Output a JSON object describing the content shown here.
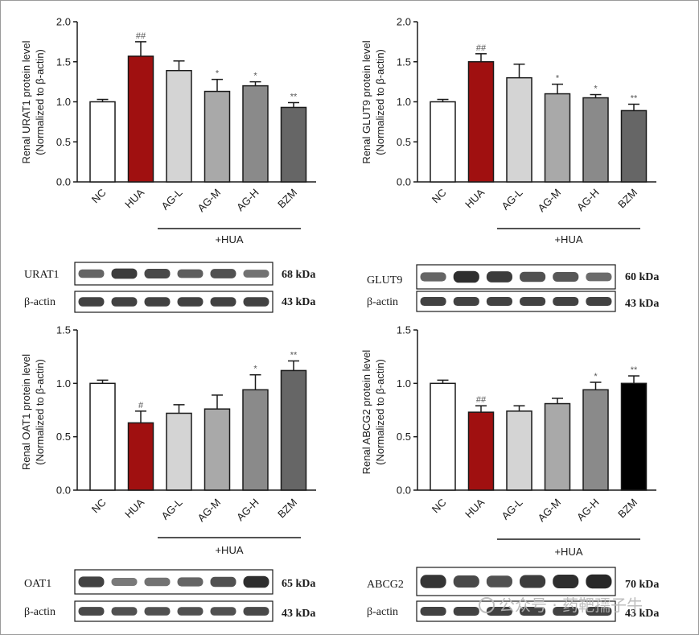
{
  "chart_data": [
    {
      "type": "bar",
      "categories": [
        "NC",
        "HUA",
        "AG-L",
        "AG-M",
        "AG-H",
        "BZM"
      ],
      "values": [
        1.0,
        1.57,
        1.39,
        1.13,
        1.2,
        0.93
      ],
      "errors": [
        0.03,
        0.18,
        0.12,
        0.15,
        0.05,
        0.06
      ],
      "significance": [
        "",
        "##",
        "",
        "*",
        "*",
        "**"
      ],
      "colors": [
        "#ffffff",
        "#a01010",
        "#d4d4d4",
        "#a9a9a9",
        "#8a8a8a",
        "#666666"
      ],
      "ylabel_line1": "Renal URAT1 protein level",
      "ylabel_line2": "(Normalized to β-actin)",
      "ylim": [
        0,
        2.0
      ],
      "yticks": [
        "0.0",
        "0.5",
        "1.0",
        "1.5",
        "2.0"
      ],
      "group_label": "+HUA",
      "blot": {
        "protein": "URAT1",
        "protein_kda": "68 kDa",
        "control": "β-actin",
        "control_kda": "43 kDa"
      }
    },
    {
      "type": "bar",
      "categories": [
        "NC",
        "HUA",
        "AG-L",
        "AG-M",
        "AG-H",
        "BZM"
      ],
      "values": [
        1.0,
        1.5,
        1.3,
        1.1,
        1.05,
        0.89
      ],
      "errors": [
        0.03,
        0.1,
        0.17,
        0.12,
        0.04,
        0.08
      ],
      "significance": [
        "",
        "##",
        "",
        "*",
        "*",
        "**"
      ],
      "colors": [
        "#ffffff",
        "#a01010",
        "#d4d4d4",
        "#a9a9a9",
        "#8a8a8a",
        "#666666"
      ],
      "ylabel_line1": "Renal GLUT9 protein level",
      "ylabel_line2": "(Normalized to β-actin)",
      "ylim": [
        0,
        2.0
      ],
      "yticks": [
        "0.0",
        "0.5",
        "1.0",
        "1.5",
        "2.0"
      ],
      "group_label": "+HUA",
      "blot": {
        "protein": "GLUT9",
        "protein_kda": "60 kDa",
        "control": "β-actin",
        "control_kda": "43 kDa"
      }
    },
    {
      "type": "bar",
      "categories": [
        "NC",
        "HUA",
        "AG-L",
        "AG-M",
        "AG-H",
        "BZM"
      ],
      "values": [
        1.0,
        0.63,
        0.72,
        0.76,
        0.94,
        1.12
      ],
      "errors": [
        0.03,
        0.11,
        0.08,
        0.13,
        0.14,
        0.09
      ],
      "significance": [
        "",
        "#",
        "",
        "",
        "*",
        "**"
      ],
      "colors": [
        "#ffffff",
        "#a01010",
        "#d4d4d4",
        "#a9a9a9",
        "#8a8a8a",
        "#666666"
      ],
      "ylabel_line1": "Renal OAT1 protein level",
      "ylabel_line2": "(Normalized to β-actin)",
      "ylim": [
        0,
        1.5
      ],
      "yticks": [
        "0.0",
        "0.5",
        "1.0",
        "1.5"
      ],
      "group_label": "+HUA",
      "blot": {
        "protein": "OAT1",
        "protein_kda": "65 kDa",
        "control": "β-actin",
        "control_kda": "43 kDa"
      }
    },
    {
      "type": "bar",
      "categories": [
        "NC",
        "HUA",
        "AG-L",
        "AG-M",
        "AG-H",
        "BZM"
      ],
      "values": [
        1.0,
        0.73,
        0.74,
        0.81,
        0.94,
        1.0
      ],
      "errors": [
        0.03,
        0.06,
        0.05,
        0.05,
        0.07,
        0.07
      ],
      "significance": [
        "",
        "##",
        "",
        "",
        "*",
        "**"
      ],
      "colors": [
        "#ffffff",
        "#a01010",
        "#d4d4d4",
        "#a9a9a9",
        "#8a8a8a",
        "#000000"
      ],
      "ylabel_line1": "Renal ABCG2 protein level",
      "ylabel_line2": "(Normalized to β-actin)",
      "ylim": [
        0,
        1.5
      ],
      "yticks": [
        "0.0",
        "0.5",
        "1.0",
        "1.5"
      ],
      "group_label": "+HUA",
      "blot": {
        "protein": "ABCG2",
        "protein_kda": "70 kDa",
        "control": "β-actin",
        "control_kda": "43 kDa"
      }
    }
  ],
  "watermark": "公众号 · 药靶孺子牛",
  "theme": {
    "axis_color": "#1a1a1a",
    "band_color": "#1c1c1c"
  },
  "band_intensity": [
    {
      "protein": [
        0.55,
        0.85,
        0.75,
        0.6,
        0.7,
        0.45
      ],
      "actin": [
        0.8,
        0.8,
        0.8,
        0.8,
        0.8,
        0.8
      ]
    },
    {
      "protein": [
        0.55,
        0.95,
        0.85,
        0.7,
        0.65,
        0.5
      ],
      "actin": [
        0.8,
        0.8,
        0.8,
        0.8,
        0.8,
        0.8
      ]
    },
    {
      "protein": [
        0.8,
        0.4,
        0.45,
        0.55,
        0.7,
        0.95
      ],
      "actin": [
        0.75,
        0.7,
        0.7,
        0.7,
        0.7,
        0.75
      ]
    },
    {
      "protein": [
        0.9,
        0.75,
        0.7,
        0.85,
        0.95,
        1.0
      ],
      "actin": [
        0.8,
        0.8,
        0.8,
        0.8,
        0.8,
        0.8
      ]
    }
  ]
}
